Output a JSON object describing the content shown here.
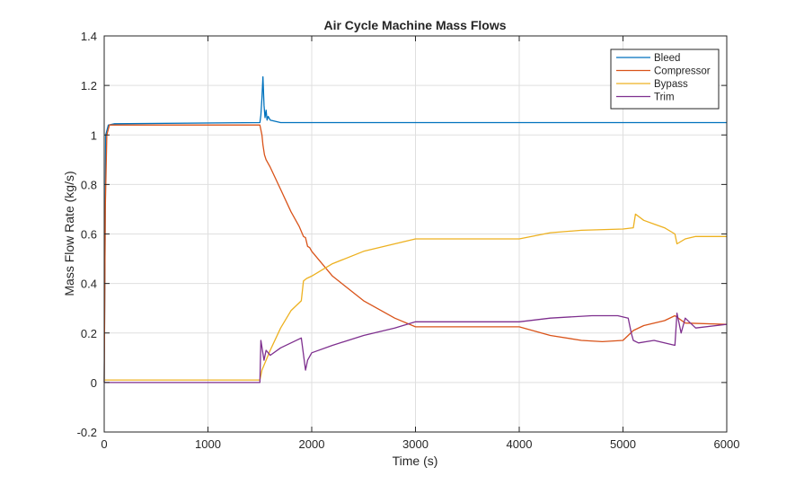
{
  "chart_data": {
    "type": "line",
    "title": "Air Cycle Machine Mass Flows",
    "xlabel": "Time (s)",
    "ylabel": "Mass Flow Rate (kg/s)",
    "xlim": [
      0,
      6000
    ],
    "ylim": [
      -0.2,
      1.4
    ],
    "xticks": [
      0,
      1000,
      2000,
      3000,
      4000,
      5000,
      6000
    ],
    "yticks": [
      -0.2,
      0,
      0.2,
      0.4,
      0.6,
      0.8,
      1,
      1.2,
      1.4
    ],
    "xtick_labels": [
      "0",
      "1000",
      "2000",
      "3000",
      "4000",
      "5000",
      "6000"
    ],
    "ytick_labels": [
      "-0.2",
      "0",
      "0.2",
      "0.4",
      "0.6",
      "0.8",
      "1",
      "1.2",
      "1.4"
    ],
    "grid": true,
    "legend_position": "top-right",
    "series": [
      {
        "name": "Bleed",
        "color": "#0072bd",
        "points": [
          [
            0,
            0
          ],
          [
            15,
            1.0
          ],
          [
            40,
            1.04
          ],
          [
            100,
            1.045
          ],
          [
            1500,
            1.05
          ],
          [
            1510,
            1.08
          ],
          [
            1520,
            1.15
          ],
          [
            1530,
            1.235
          ],
          [
            1540,
            1.12
          ],
          [
            1550,
            1.07
          ],
          [
            1560,
            1.1
          ],
          [
            1570,
            1.06
          ],
          [
            1580,
            1.075
          ],
          [
            1600,
            1.06
          ],
          [
            1650,
            1.055
          ],
          [
            1700,
            1.05
          ],
          [
            6000,
            1.05
          ]
        ]
      },
      {
        "name": "Compressor",
        "color": "#d95319",
        "points": [
          [
            0,
            0
          ],
          [
            10,
            0.7
          ],
          [
            25,
            1.0
          ],
          [
            50,
            1.04
          ],
          [
            1500,
            1.04
          ],
          [
            1520,
            1.0
          ],
          [
            1530,
            0.96
          ],
          [
            1545,
            0.92
          ],
          [
            1560,
            0.9
          ],
          [
            1600,
            0.87
          ],
          [
            1700,
            0.78
          ],
          [
            1800,
            0.69
          ],
          [
            1880,
            0.63
          ],
          [
            1920,
            0.59
          ],
          [
            1940,
            0.585
          ],
          [
            1960,
            0.55
          ],
          [
            1980,
            0.545
          ],
          [
            2000,
            0.53
          ],
          [
            2200,
            0.43
          ],
          [
            2500,
            0.33
          ],
          [
            2800,
            0.26
          ],
          [
            3000,
            0.225
          ],
          [
            4000,
            0.225
          ],
          [
            4300,
            0.19
          ],
          [
            4600,
            0.17
          ],
          [
            4800,
            0.165
          ],
          [
            5000,
            0.17
          ],
          [
            5100,
            0.21
          ],
          [
            5200,
            0.23
          ],
          [
            5400,
            0.25
          ],
          [
            5500,
            0.27
          ],
          [
            5600,
            0.24
          ],
          [
            6000,
            0.235
          ]
        ]
      },
      {
        "name": "Bypass",
        "color": "#edb120",
        "points": [
          [
            0,
            0.01
          ],
          [
            1500,
            0.01
          ],
          [
            1520,
            0.05
          ],
          [
            1600,
            0.13
          ],
          [
            1700,
            0.22
          ],
          [
            1800,
            0.29
          ],
          [
            1900,
            0.33
          ],
          [
            1920,
            0.41
          ],
          [
            1950,
            0.42
          ],
          [
            2000,
            0.43
          ],
          [
            2200,
            0.48
          ],
          [
            2500,
            0.53
          ],
          [
            2800,
            0.56
          ],
          [
            3000,
            0.58
          ],
          [
            4000,
            0.58
          ],
          [
            4300,
            0.605
          ],
          [
            4600,
            0.615
          ],
          [
            5000,
            0.62
          ],
          [
            5100,
            0.625
          ],
          [
            5120,
            0.68
          ],
          [
            5200,
            0.655
          ],
          [
            5300,
            0.64
          ],
          [
            5400,
            0.625
          ],
          [
            5500,
            0.6
          ],
          [
            5520,
            0.56
          ],
          [
            5600,
            0.58
          ],
          [
            5700,
            0.59
          ],
          [
            6000,
            0.59
          ]
        ]
      },
      {
        "name": "Trim",
        "color": "#7e2f8e",
        "points": [
          [
            0,
            0
          ],
          [
            1500,
            0
          ],
          [
            1510,
            0.17
          ],
          [
            1540,
            0.09
          ],
          [
            1560,
            0.13
          ],
          [
            1600,
            0.11
          ],
          [
            1700,
            0.14
          ],
          [
            1800,
            0.16
          ],
          [
            1900,
            0.18
          ],
          [
            1940,
            0.05
          ],
          [
            1960,
            0.09
          ],
          [
            2000,
            0.12
          ],
          [
            2200,
            0.15
          ],
          [
            2500,
            0.19
          ],
          [
            2800,
            0.22
          ],
          [
            3000,
            0.245
          ],
          [
            4000,
            0.245
          ],
          [
            4300,
            0.26
          ],
          [
            4700,
            0.27
          ],
          [
            4950,
            0.27
          ],
          [
            5050,
            0.26
          ],
          [
            5080,
            0.2
          ],
          [
            5100,
            0.17
          ],
          [
            5150,
            0.16
          ],
          [
            5300,
            0.17
          ],
          [
            5500,
            0.15
          ],
          [
            5520,
            0.28
          ],
          [
            5560,
            0.2
          ],
          [
            5600,
            0.26
          ],
          [
            5700,
            0.22
          ],
          [
            6000,
            0.235
          ]
        ]
      }
    ]
  }
}
